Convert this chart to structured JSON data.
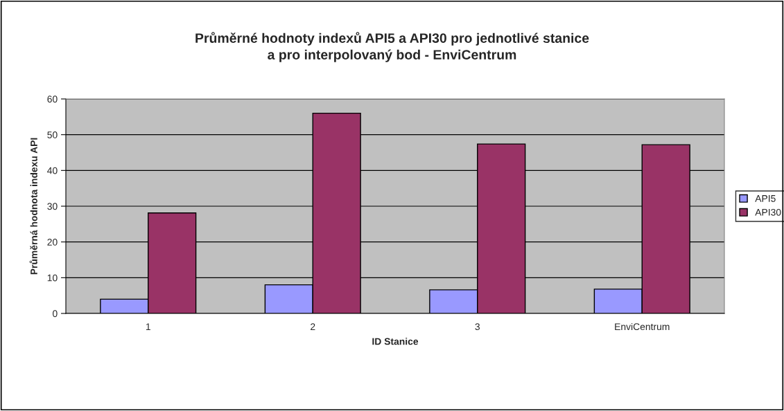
{
  "chart_data": {
    "type": "bar",
    "title": "Průměrné hodnoty indexů API5 a API30 pro jednotlivé stanice\na pro interpolovaný bod - EnviCentrum",
    "xlabel": "ID Stanice",
    "ylabel": "Průměrná hodnota indexu API",
    "categories": [
      "1",
      "2",
      "3",
      "EnviCentrum"
    ],
    "series": [
      {
        "name": "API5",
        "color": "#9999ff",
        "values": [
          4,
          8,
          6.6,
          6.8
        ]
      },
      {
        "name": "API30",
        "color": "#993366",
        "values": [
          28.1,
          56,
          47.4,
          47.2
        ]
      }
    ],
    "ylim": [
      0,
      60
    ],
    "yticks": [
      0,
      10,
      20,
      30,
      40,
      50,
      60
    ],
    "grid": "y",
    "legend": "right"
  }
}
